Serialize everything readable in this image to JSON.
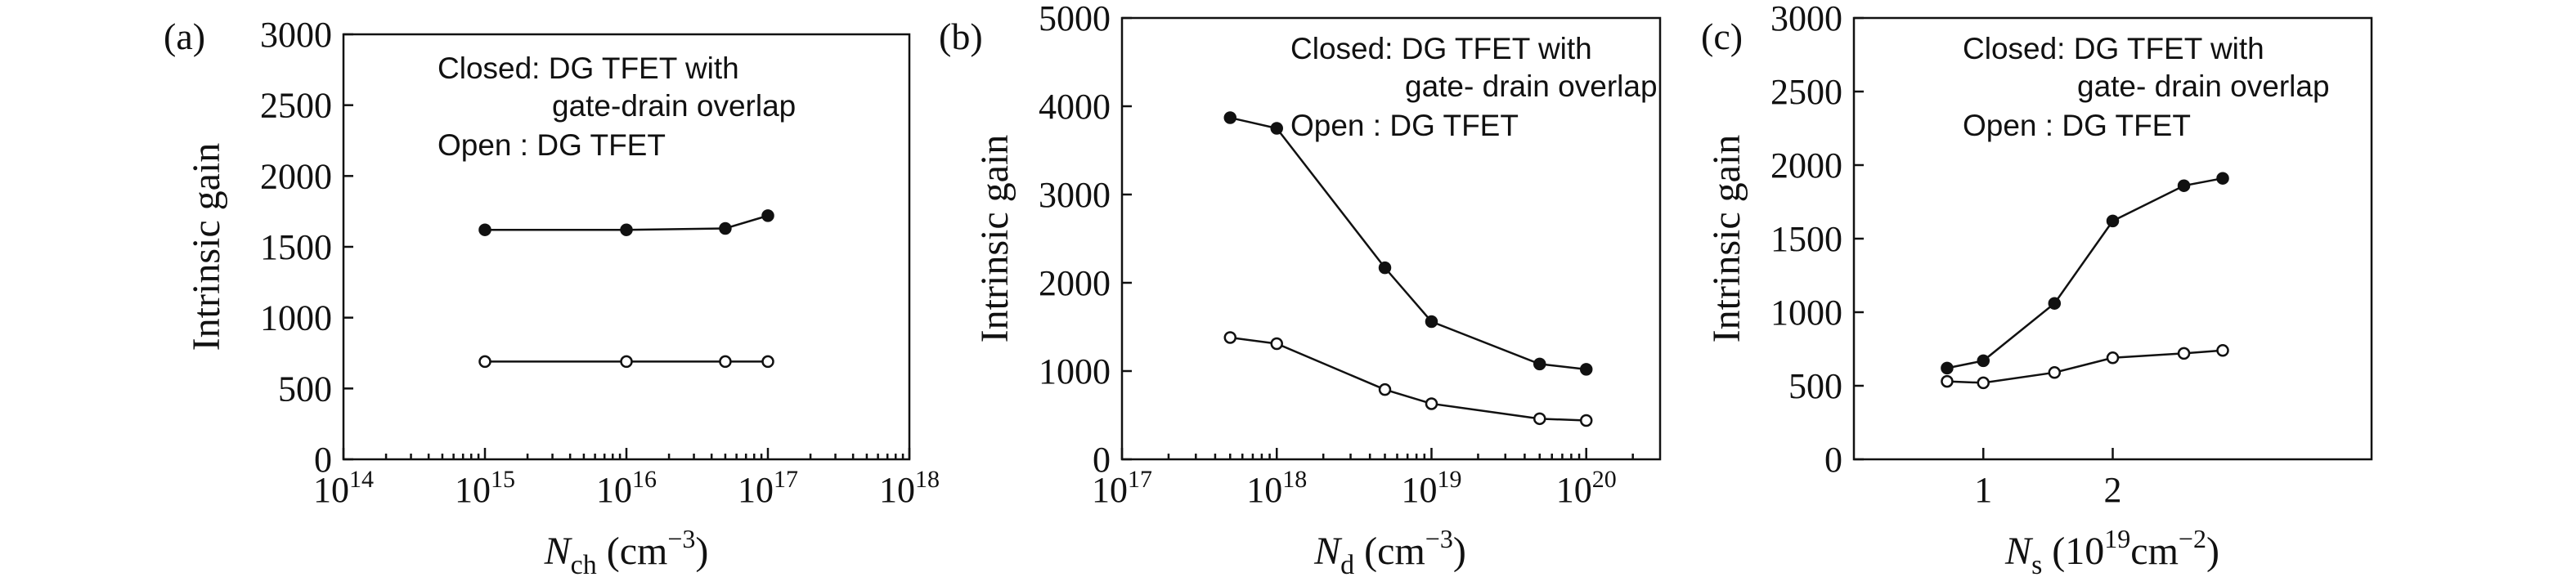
{
  "chart_data": [
    {
      "panel_label": "(a)",
      "type": "line",
      "xlabel": {
        "symbol": "N",
        "sub": "ch",
        "unit_before": " (cm",
        "unit_sup": "−3",
        "unit_after": ")"
      },
      "ylabel": "Intrinsic gain",
      "xscale": "log",
      "xlim": [
        100000000000000.0,
        1e+18
      ],
      "ylim": [
        0,
        3000
      ],
      "xticks": [
        {
          "value": 100000000000000.0,
          "base": "10",
          "exp": "14"
        },
        {
          "value": 1000000000000000.0,
          "base": "10",
          "exp": "15"
        },
        {
          "value": 1e+16,
          "base": "10",
          "exp": "16"
        },
        {
          "value": 1e+17,
          "base": "10",
          "exp": "17"
        },
        {
          "value": 1e+18,
          "base": "10",
          "exp": "18"
        }
      ],
      "yticks": [
        0,
        500,
        1000,
        1500,
        2000,
        2500,
        3000
      ],
      "minor_xticks": true,
      "legend": [
        "Closed: DG TFET with",
        "gate-drain overlap",
        "Open   : DG TFET"
      ],
      "series": [
        {
          "marker": "closed",
          "x": [
            1000000000000000.0,
            1e+16,
            5e+16,
            1e+17
          ],
          "y": [
            1620,
            1620,
            1630,
            1720
          ]
        },
        {
          "marker": "open",
          "x": [
            1000000000000000.0,
            1e+16,
            5e+16,
            1e+17
          ],
          "y": [
            690,
            690,
            690,
            690
          ]
        }
      ]
    },
    {
      "panel_label": "(b)",
      "type": "line",
      "xlabel": {
        "symbol": "N",
        "sub": "d",
        "unit_before": " (cm",
        "unit_sup": "−3",
        "unit_after": ")"
      },
      "ylabel": "Intrinsic gain",
      "xscale": "log",
      "xlim": [
        1e+17,
        3e+20
      ],
      "ylim": [
        0,
        5000
      ],
      "xticks": [
        {
          "value": 1e+17,
          "base": "10",
          "exp": "17"
        },
        {
          "value": 1e+18,
          "base": "10",
          "exp": "18"
        },
        {
          "value": 1e+19,
          "base": "10",
          "exp": "19"
        },
        {
          "value": 1e+20,
          "base": "10",
          "exp": "20"
        }
      ],
      "yticks": [
        0,
        1000,
        2000,
        3000,
        4000,
        5000
      ],
      "minor_xticks": true,
      "legend": [
        "Closed: DG TFET with",
        "gate- drain overlap",
        "Open   : DG TFET"
      ],
      "series": [
        {
          "marker": "closed",
          "x": [
            5e+17,
            1e+18,
            5e+18,
            1e+19,
            5e+19,
            1e+20
          ],
          "y": [
            3870,
            3750,
            2170,
            1560,
            1080,
            1020
          ]
        },
        {
          "marker": "open",
          "x": [
            5e+17,
            1e+18,
            5e+18,
            1e+19,
            5e+19,
            1e+20
          ],
          "y": [
            1380,
            1310,
            790,
            630,
            460,
            440
          ]
        }
      ]
    },
    {
      "panel_label": "(c)",
      "type": "line",
      "xlabel": {
        "symbol": "N",
        "sub": "s",
        "unit_before": " (10",
        "unit_sup": "19",
        "unit_after": "cm",
        "unit_sup2": "−2",
        "unit_end": ")"
      },
      "ylabel": "Intrinsic gain",
      "xscale": "linear",
      "xlim": [
        0,
        4
      ],
      "ylim": [
        0,
        3000
      ],
      "xticks": [
        {
          "value": 1,
          "label": "1"
        },
        {
          "value": 2,
          "label": "2"
        }
      ],
      "yticks": [
        0,
        500,
        1000,
        1500,
        2000,
        2500,
        3000
      ],
      "minor_xticks": false,
      "legend": [
        "Closed: DG TFET with",
        "gate- drain overlap",
        "Open   : DG TFET"
      ],
      "series": [
        {
          "marker": "closed",
          "x": [
            0.72,
            1.0,
            1.55,
            2.0,
            2.55,
            2.85
          ],
          "y": [
            620,
            670,
            1060,
            1620,
            1860,
            1910
          ]
        },
        {
          "marker": "open",
          "x": [
            0.72,
            1.0,
            1.55,
            2.0,
            2.55,
            2.85
          ],
          "y": [
            530,
            520,
            590,
            690,
            720,
            740
          ]
        }
      ]
    }
  ]
}
